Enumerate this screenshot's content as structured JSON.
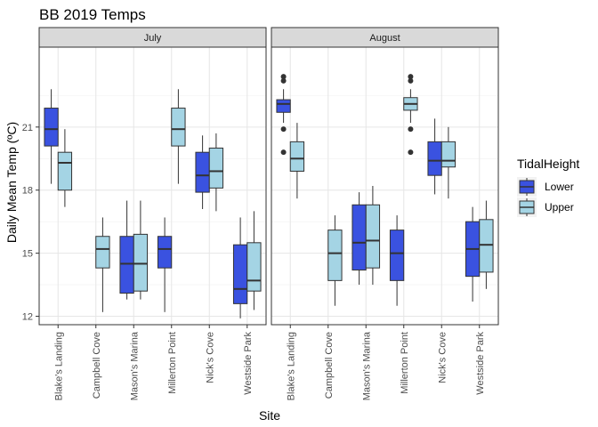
{
  "chart_data": {
    "type": "boxplot",
    "title": "BB 2019 Temps",
    "xlabel": "Site",
    "ylabel": "Daily Mean Temp (ºC)",
    "ylim": [
      11.6,
      24.8
    ],
    "yticks": [
      12,
      15,
      18,
      21
    ],
    "categories": [
      "Blake's Landing",
      "Campbell Cove",
      "Mason's Marina",
      "Millerton Point",
      "Nick's Cove",
      "Westside Park"
    ],
    "legend": {
      "title": "TidalHeight",
      "position": "right",
      "entries": [
        {
          "name": "Lower",
          "color": "#3a52e0"
        },
        {
          "name": "Upper",
          "color": "#a4d4e4"
        }
      ]
    },
    "grid": true,
    "facets": [
      {
        "label": "July",
        "series": [
          {
            "name": "Lower",
            "boxes": [
              {
                "category": "Blake's Landing",
                "whisker_low": 18.3,
                "q1": 20.1,
                "median": 20.9,
                "q3": 21.9,
                "whisker_high": 22.8,
                "outliers": []
              },
              null,
              {
                "category": "Mason's Marina",
                "whisker_low": 12.8,
                "q1": 13.1,
                "median": 14.5,
                "q3": 15.8,
                "whisker_high": 17.5,
                "outliers": []
              },
              {
                "category": "Millerton Point",
                "whisker_low": 12.2,
                "q1": 14.3,
                "median": 15.2,
                "q3": 15.8,
                "whisker_high": 16.7,
                "outliers": []
              },
              {
                "category": "Nick's Cove",
                "whisker_low": 17.1,
                "q1": 17.9,
                "median": 18.7,
                "q3": 19.8,
                "whisker_high": 20.6,
                "outliers": []
              },
              {
                "category": "Westside Park",
                "whisker_low": 11.9,
                "q1": 12.6,
                "median": 13.3,
                "q3": 15.4,
                "whisker_high": 16.7,
                "outliers": []
              }
            ]
          },
          {
            "name": "Upper",
            "boxes": [
              {
                "category": "Blake's Landing",
                "whisker_low": 17.2,
                "q1": 18.0,
                "median": 19.3,
                "q3": 19.8,
                "whisker_high": 20.9,
                "outliers": []
              },
              {
                "category": "Campbell Cove",
                "whisker_low": 12.2,
                "q1": 14.3,
                "median": 15.2,
                "q3": 15.8,
                "whisker_high": 16.7,
                "outliers": []
              },
              {
                "category": "Mason's Marina",
                "whisker_low": 12.8,
                "q1": 13.2,
                "median": 14.5,
                "q3": 15.9,
                "whisker_high": 17.5,
                "outliers": []
              },
              {
                "category": "Millerton Point",
                "whisker_low": 18.3,
                "q1": 20.1,
                "median": 20.9,
                "q3": 21.9,
                "whisker_high": 22.8,
                "outliers": []
              },
              {
                "category": "Nick's Cove",
                "whisker_low": 17.0,
                "q1": 18.1,
                "median": 18.9,
                "q3": 20.0,
                "whisker_high": 20.7,
                "outliers": []
              },
              {
                "category": "Westside Park",
                "whisker_low": 12.3,
                "q1": 13.2,
                "median": 13.7,
                "q3": 15.5,
                "whisker_high": 17.0,
                "outliers": []
              }
            ]
          }
        ]
      },
      {
        "label": "August",
        "series": [
          {
            "name": "Lower",
            "boxes": [
              {
                "category": "Blake's Landing",
                "whisker_low": 21.2,
                "q1": 21.7,
                "median": 22.1,
                "q3": 22.3,
                "whisker_high": 22.8,
                "outliers": [
                  23.2,
                  23.4,
                  20.9,
                  19.8
                ]
              },
              null,
              {
                "category": "Mason's Marina",
                "whisker_low": 13.5,
                "q1": 14.2,
                "median": 15.5,
                "q3": 17.3,
                "whisker_high": 17.9,
                "outliers": []
              },
              {
                "category": "Millerton Point",
                "whisker_low": 12.5,
                "q1": 13.7,
                "median": 15.0,
                "q3": 16.1,
                "whisker_high": 16.8,
                "outliers": []
              },
              {
                "category": "Nick's Cove",
                "whisker_low": 17.8,
                "q1": 18.7,
                "median": 19.4,
                "q3": 20.3,
                "whisker_high": 21.4,
                "outliers": []
              },
              {
                "category": "Westside Park",
                "whisker_low": 12.7,
                "q1": 13.9,
                "median": 15.2,
                "q3": 16.5,
                "whisker_high": 17.2,
                "outliers": []
              }
            ]
          },
          {
            "name": "Upper",
            "boxes": [
              {
                "category": "Blake's Landing",
                "whisker_low": 17.6,
                "q1": 18.9,
                "median": 19.5,
                "q3": 20.3,
                "whisker_high": 21.2,
                "outliers": []
              },
              {
                "category": "Campbell Cove",
                "whisker_low": 12.5,
                "q1": 13.7,
                "median": 15.0,
                "q3": 16.1,
                "whisker_high": 16.8,
                "outliers": []
              },
              {
                "category": "Mason's Marina",
                "whisker_low": 13.5,
                "q1": 14.3,
                "median": 15.6,
                "q3": 17.3,
                "whisker_high": 18.2,
                "outliers": []
              },
              {
                "category": "Millerton Point",
                "whisker_low": 21.2,
                "q1": 21.8,
                "median": 22.1,
                "q3": 22.4,
                "whisker_high": 22.8,
                "outliers": [
                  23.2,
                  23.4,
                  20.9,
                  19.8
                ]
              },
              {
                "category": "Nick's Cove",
                "whisker_low": 17.6,
                "q1": 19.1,
                "median": 19.4,
                "q3": 20.3,
                "whisker_high": 21.0,
                "outliers": []
              },
              {
                "category": "Westside Park",
                "whisker_low": 13.3,
                "q1": 14.1,
                "median": 15.4,
                "q3": 16.6,
                "whisker_high": 17.5,
                "outliers": []
              }
            ]
          }
        ]
      }
    ]
  }
}
